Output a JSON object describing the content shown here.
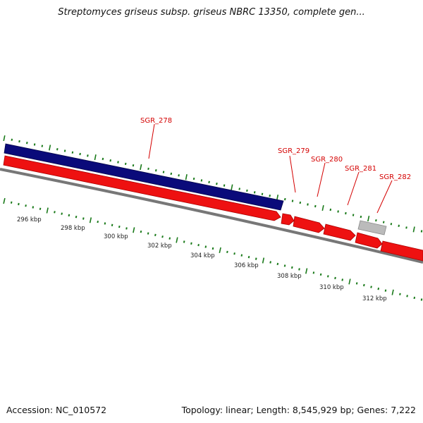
{
  "title": "Streptomyces griseus subsp. griseus NBRC 13350, complete gen...",
  "footer": {
    "accession": "Accession: NC_010572",
    "summary": "Topology: linear; Length: 8,545,929 bp; Genes: 7,222"
  },
  "colors": {
    "forward_gene": "#ee1111",
    "reverse_gene": "#0a0a7a",
    "pseudo_gene": "#bbbbbb",
    "label": "#d40000",
    "ticks": "#1a7a1a",
    "backbone": "#777777"
  },
  "genes": [
    {
      "name": "SGR_278",
      "strand": "reverse"
    },
    {
      "name": "SGR_279",
      "strand": "forward"
    },
    {
      "name": "SGR_280",
      "strand": "forward"
    },
    {
      "name": "SGR_281",
      "strand": "forward"
    },
    {
      "name": "SGR_282",
      "strand": "forward"
    }
  ],
  "scale_labels": [
    "296 kbp",
    "298 kbp",
    "300 kbp",
    "302 kbp",
    "304 kbp",
    "306 kbp",
    "308 kbp",
    "310 kbp",
    "312 kbp"
  ]
}
